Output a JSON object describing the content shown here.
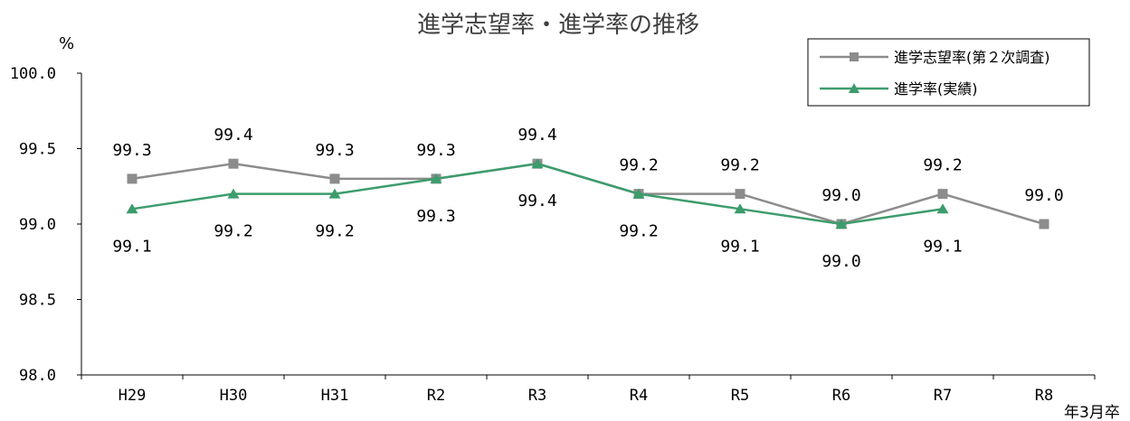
{
  "chart_data": {
    "type": "line",
    "title": "進学志望率・進学率の推移",
    "ylabel": "%",
    "xlabel": "年3月卒",
    "ylim": [
      98.0,
      100.0
    ],
    "yticks": [
      "100.0",
      "99.5",
      "99.0",
      "98.5",
      "98.0"
    ],
    "categories": [
      "H29",
      "H30",
      "H31",
      "R2",
      "R3",
      "R4",
      "R5",
      "R6",
      "R7",
      "R8"
    ],
    "legend_position": "top-right",
    "series": [
      {
        "name": "進学志望率(第２次調査)",
        "color": "#8c8c8c",
        "marker": "square",
        "values": [
          99.3,
          99.4,
          99.3,
          99.3,
          99.4,
          99.2,
          99.2,
          99.0,
          99.2,
          99.0
        ],
        "labels": [
          "99.3",
          "99.4",
          "99.3",
          "99.3",
          "99.4",
          "99.2",
          "99.2",
          "99.0",
          "99.2",
          "99.0"
        ]
      },
      {
        "name": "進学率(実績)",
        "color": "#3c9c6c",
        "marker": "triangle",
        "values": [
          99.1,
          99.2,
          99.2,
          99.3,
          99.4,
          99.2,
          99.1,
          99.0,
          99.1,
          null
        ],
        "labels": [
          "99.1",
          "99.2",
          "99.2",
          "99.3",
          "99.4",
          "99.2",
          "99.1",
          "99.0",
          "99.1",
          null
        ]
      }
    ]
  }
}
